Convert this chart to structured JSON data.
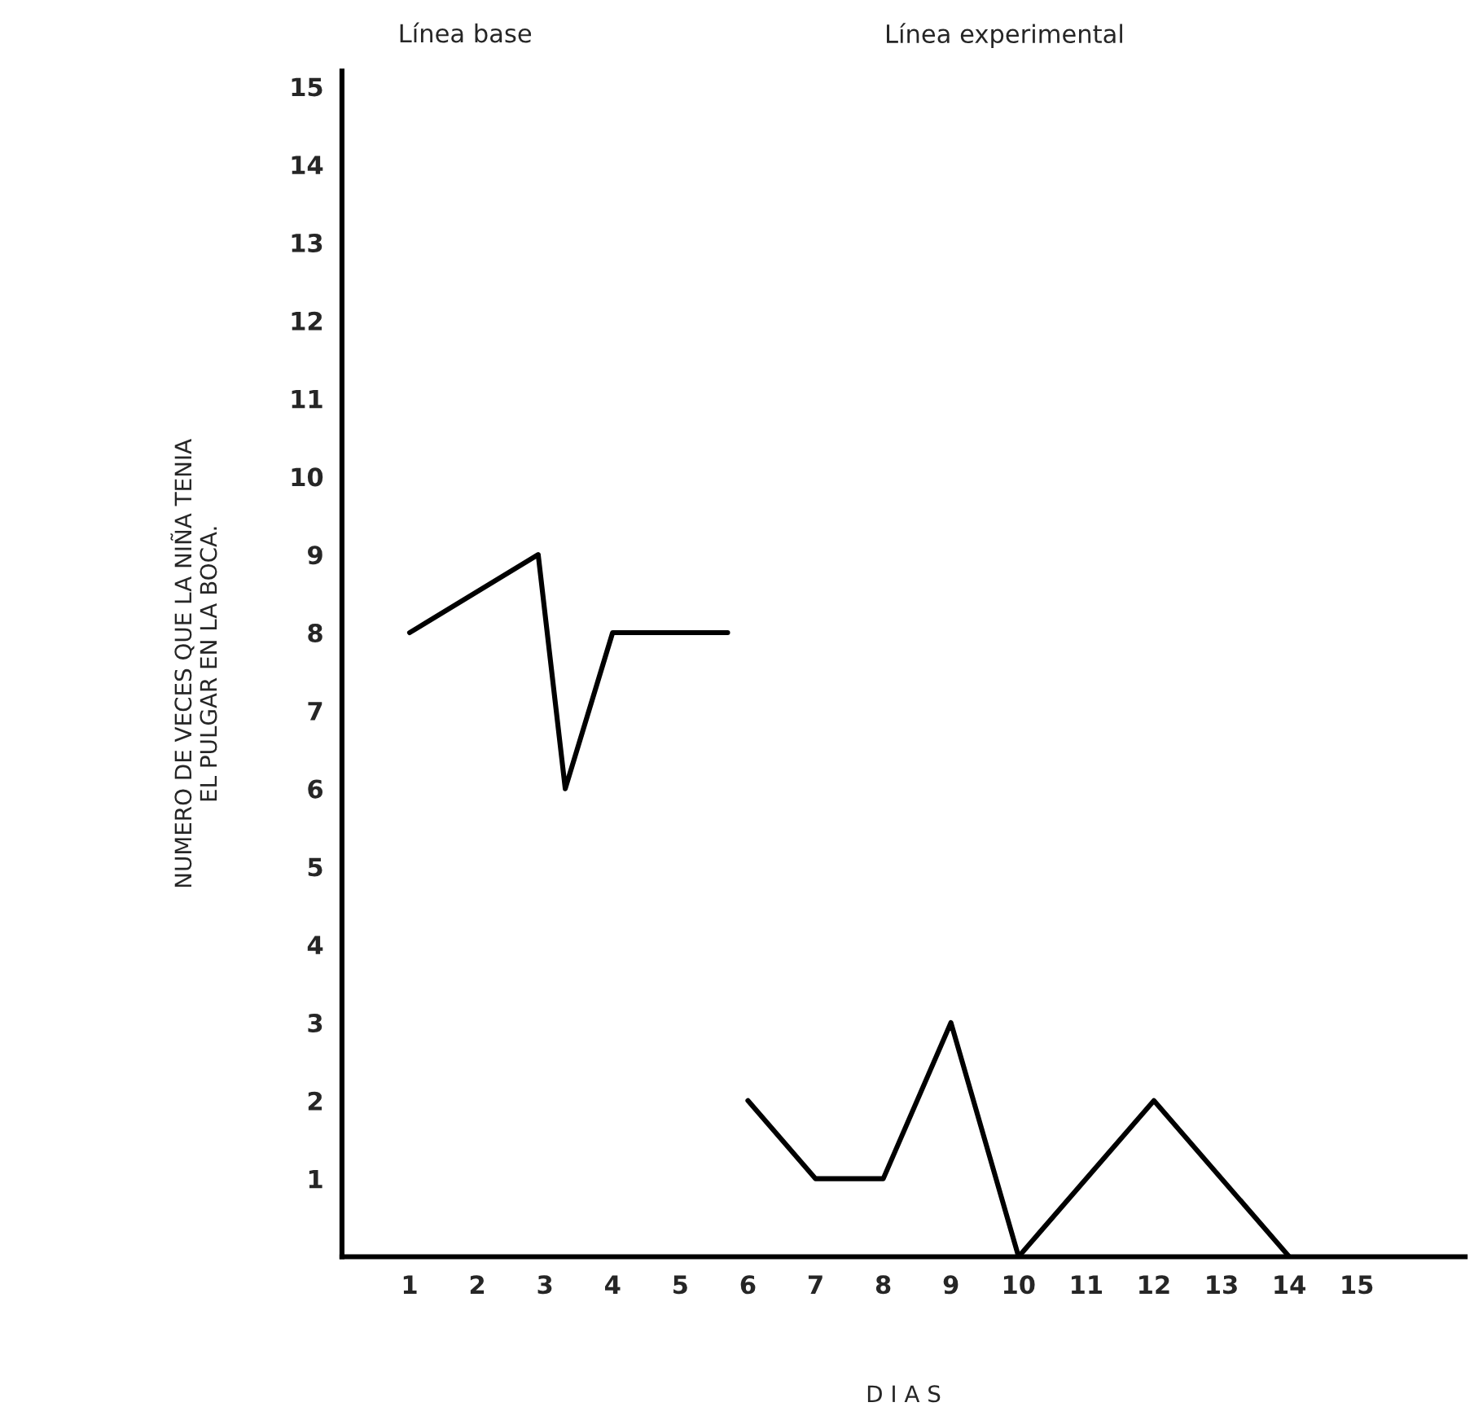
{
  "chart_data": {
    "type": "line",
    "xlabel": "D I A S",
    "ylabel": "NUMERO DE VECES QUE LA NIÑA TENIA\nEL PULGAR EN LA BOCA.",
    "annotations": [
      "Línea base",
      "Línea experimental"
    ],
    "series": [
      {
        "color": "#000000",
        "x": [
          1,
          2.9,
          3.3,
          4,
          5.7
        ],
        "values": [
          8,
          9,
          6,
          8,
          8
        ]
      },
      {
        "color": "#000000",
        "x": [
          6,
          7,
          8,
          9,
          10,
          12,
          14
        ],
        "values": [
          2,
          1,
          1,
          3,
          0,
          2,
          0
        ]
      }
    ],
    "xlim": [
      0,
      16.6
    ],
    "xticks": [
      1,
      2,
      3,
      4,
      5,
      6,
      7,
      8,
      9,
      10,
      11,
      12,
      13,
      14,
      15
    ],
    "ylim": [
      0,
      15.2
    ],
    "yticks": [
      1,
      2,
      3,
      4,
      5,
      6,
      7,
      8,
      9,
      10,
      11,
      12,
      13,
      14,
      15
    ],
    "grid": false,
    "legend": false,
    "marker": "none",
    "line_style": "solid"
  }
}
